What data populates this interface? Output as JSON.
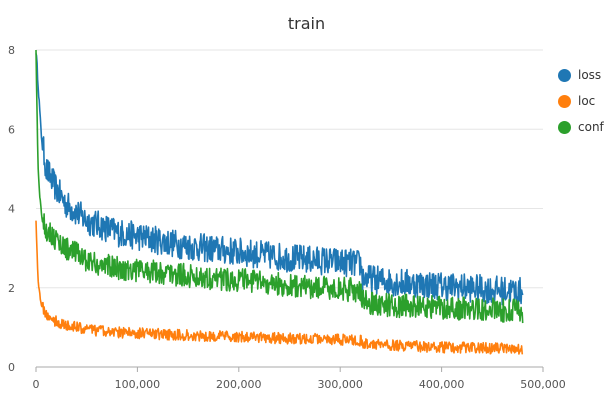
{
  "chart_data": {
    "type": "line",
    "title": "train",
    "xlabel": "",
    "ylabel": "",
    "xlim": [
      0,
      500000
    ],
    "ylim": [
      0,
      8
    ],
    "x_ticks": [
      0,
      100000,
      200000,
      300000,
      400000,
      500000
    ],
    "x_tick_labels": [
      "0",
      "100,000",
      "200,000",
      "300,000",
      "400,000",
      "500,000"
    ],
    "y_ticks": [
      0,
      2,
      4,
      6,
      8
    ],
    "y_tick_labels": [
      "0",
      "2",
      "4",
      "6",
      "8"
    ],
    "grid": "horizontal",
    "legend_position": "right",
    "x": [
      0,
      2000,
      5000,
      10000,
      20000,
      30000,
      40000,
      50000,
      60000,
      80000,
      100000,
      120000,
      150000,
      200000,
      250000,
      300000,
      320000,
      322000,
      350000,
      400000,
      450000,
      480000
    ],
    "series": [
      {
        "name": "loss",
        "color": "#1f77b4",
        "values": [
          8.0,
          7.2,
          5.9,
          5.0,
          4.5,
          4.1,
          3.9,
          3.7,
          3.6,
          3.4,
          3.3,
          3.2,
          3.05,
          2.9,
          2.75,
          2.65,
          2.6,
          2.25,
          2.15,
          2.05,
          1.95,
          1.9
        ]
      },
      {
        "name": "loc",
        "color": "#ff7f0e",
        "values": [
          3.7,
          2.2,
          1.6,
          1.3,
          1.15,
          1.05,
          1.0,
          0.95,
          0.92,
          0.88,
          0.85,
          0.83,
          0.8,
          0.76,
          0.72,
          0.69,
          0.67,
          0.6,
          0.55,
          0.5,
          0.47,
          0.45
        ]
      },
      {
        "name": "conf",
        "color": "#2ca02c",
        "values": [
          8.0,
          5.0,
          3.9,
          3.5,
          3.2,
          3.0,
          2.85,
          2.7,
          2.6,
          2.5,
          2.45,
          2.4,
          2.3,
          2.2,
          2.05,
          1.97,
          1.93,
          1.65,
          1.55,
          1.5,
          1.45,
          1.4
        ]
      }
    ]
  }
}
